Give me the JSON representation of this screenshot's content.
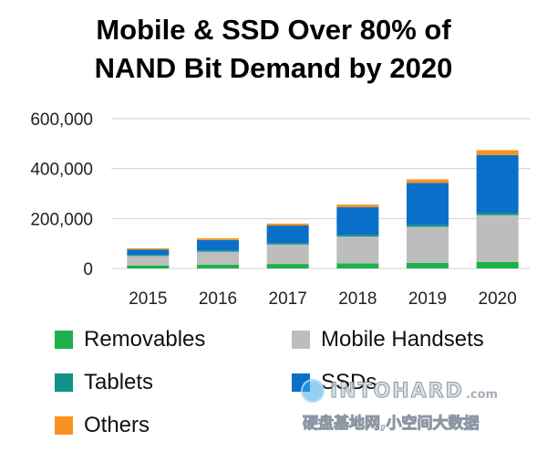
{
  "chart_data": {
    "type": "bar",
    "stacked": true,
    "title": "Mobile & SSD Over 80% of NAND Bit Demand by 2020",
    "title_lines": [
      "Mobile & SSD Over 80% of",
      "NAND Bit Demand by 2020"
    ],
    "xlabel": "",
    "ylabel": "",
    "ylim": [
      0,
      600000
    ],
    "y_ticks": [
      0,
      200000,
      400000,
      600000
    ],
    "y_tick_labels": [
      "0",
      "200,000",
      "400,000",
      "600,000"
    ],
    "grid": true,
    "legend_position": "bottom",
    "categories": [
      "2015",
      "2016",
      "2017",
      "2018",
      "2019",
      "2020"
    ],
    "series": [
      {
        "name": "Removables",
        "color": "#1cb14a",
        "values": [
          12000,
          15000,
          18000,
          20000,
          22000,
          26000
        ]
      },
      {
        "name": "Mobile Handsets",
        "color": "#bdbdbd",
        "values": [
          38000,
          52000,
          78000,
          108000,
          145000,
          188000
        ]
      },
      {
        "name": "Tablets",
        "color": "#119187",
        "values": [
          4000,
          5000,
          6000,
          7000,
          8000,
          9000
        ]
      },
      {
        "name": "SSDs",
        "color": "#0a6fc8",
        "values": [
          22000,
          42000,
          70000,
          111000,
          168000,
          231000
        ]
      },
      {
        "name": "Others",
        "color": "#f7931e",
        "values": [
          5000,
          7000,
          8000,
          10000,
          14000,
          20000
        ]
      }
    ]
  },
  "watermark": {
    "logo_text": "INTOHARD",
    "logo_suffix": ".com",
    "subtitle": "硬盘基地网,小空间大数据"
  }
}
